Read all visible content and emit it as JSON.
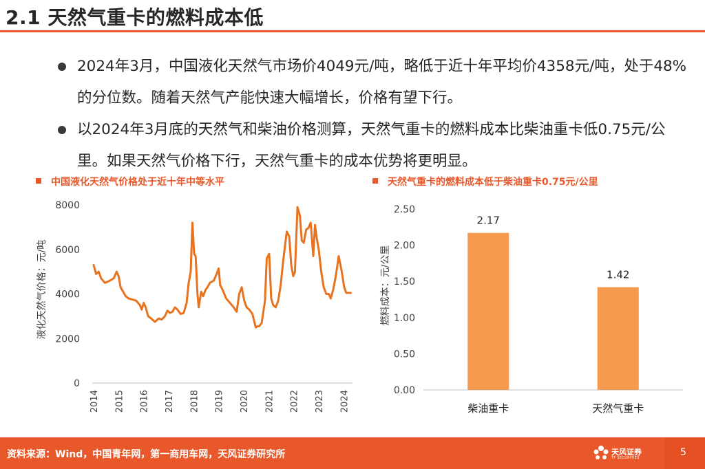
{
  "slide": {
    "title": "2.1 天然气重卡的燃料成本低",
    "page_number": "5",
    "accent_color": "#E8582A"
  },
  "bullets": [
    "2024年3月，中国液化天然气市场价4049元/吨，略低于近十年平均价4358元/吨，处于48%的分位数。随着天然气产能快速大幅增长，价格有望下行。",
    "以2024年3月底的天然气和柴油价格测算，天然气重卡的燃料成本比柴油重卡低0.75元/公里。如果天然气价格下行，天然气重卡的成本优势将更明显。"
  ],
  "footer": {
    "source": "资料来源：Wind，中国青年网，第一商用车网，天风证券研究所",
    "logo_name": "天风证券",
    "logo_sub": "TF SECURITIES"
  },
  "chart_data": [
    {
      "type": "line",
      "title": "中国液化天然气价格处于近十年中等水平",
      "ylabel": "液化天然气价格：元/吨",
      "xlabel": "",
      "ylim": [
        0,
        8000
      ],
      "xlim": [
        2014,
        2024.35
      ],
      "yticks": [
        0,
        2000,
        4000,
        6000,
        8000
      ],
      "xticks": [
        "2014",
        "2015",
        "2016",
        "2017",
        "2018",
        "2019",
        "2020",
        "2021",
        "2022",
        "2023",
        "2024"
      ],
      "grid": false,
      "color": "#E8731F",
      "series": [
        {
          "x": [
            2014.0,
            2014.1,
            2014.2,
            2014.3,
            2014.45,
            2014.55,
            2014.65,
            2014.8,
            2014.92,
            2015.0,
            2015.08,
            2015.18,
            2015.28,
            2015.4,
            2015.55,
            2015.7,
            2015.85,
            2015.92,
            2016.0,
            2016.08,
            2016.18,
            2016.3,
            2016.45,
            2016.6,
            2016.72,
            2016.85,
            2016.95,
            2017.05,
            2017.15,
            2017.25,
            2017.35,
            2017.48,
            2017.6,
            2017.72,
            2017.8,
            2017.88,
            2017.95,
            2018.02,
            2018.08,
            2018.15,
            2018.2,
            2018.3,
            2018.38,
            2018.48,
            2018.55,
            2018.65,
            2018.8,
            2018.92,
            2019.0,
            2019.06,
            2019.15,
            2019.3,
            2019.45,
            2019.6,
            2019.72,
            2019.82,
            2019.92,
            2020.02,
            2020.12,
            2020.22,
            2020.35,
            2020.48,
            2020.55,
            2020.62,
            2020.72,
            2020.85,
            2020.92,
            2021.02,
            2021.1,
            2021.18,
            2021.28,
            2021.38,
            2021.48,
            2021.58,
            2021.72,
            2021.82,
            2021.9,
            2021.98,
            2022.05,
            2022.15,
            2022.25,
            2022.32,
            2022.4,
            2022.5,
            2022.58,
            2022.68,
            2022.78,
            2022.85,
            2022.92,
            2023.0,
            2023.1,
            2023.2,
            2023.3,
            2023.4,
            2023.48,
            2023.58,
            2023.68,
            2023.8,
            2023.92,
            2024.02,
            2024.1,
            2024.2,
            2024.28
          ],
          "y": [
            5300,
            4900,
            5000,
            4700,
            4500,
            4550,
            4600,
            4700,
            5000,
            4800,
            4300,
            4100,
            3900,
            3800,
            3750,
            3700,
            3500,
            3300,
            3600,
            3400,
            3000,
            2900,
            2750,
            2900,
            2850,
            3000,
            3250,
            3150,
            3200,
            3400,
            3300,
            3100,
            3150,
            3600,
            4500,
            5000,
            7200,
            5800,
            5700,
            4000,
            3400,
            4100,
            3900,
            4200,
            4300,
            4500,
            4600,
            4900,
            5150,
            4400,
            4200,
            3800,
            3600,
            3400,
            3200,
            4000,
            4300,
            3700,
            3400,
            3300,
            3100,
            2500,
            2550,
            2550,
            2700,
            3700,
            5600,
            5800,
            3800,
            3500,
            3400,
            3700,
            4400,
            5500,
            6800,
            6600,
            5300,
            4800,
            5000,
            7900,
            7500,
            6400,
            6300,
            6900,
            6950,
            7200,
            5700,
            7100,
            6500,
            6000,
            5000,
            4300,
            4000,
            4000,
            3800,
            4200,
            4800,
            5700,
            5000,
            4300,
            4049,
            4049,
            4049
          ]
        }
      ]
    },
    {
      "type": "bar",
      "title": "天然气重卡的燃料成本低于柴油重卡0.75元/公里",
      "ylabel": "燃料成本：元/公里",
      "xlabel": "",
      "ylim": [
        0,
        2.5
      ],
      "yticks": [
        "0.00",
        "0.50",
        "1.00",
        "1.50",
        "2.00",
        "2.50"
      ],
      "categories": [
        "柴油重卡",
        "天然气重卡"
      ],
      "values": [
        2.17,
        1.42
      ],
      "data_labels": [
        "2.17",
        "1.42"
      ],
      "grid": false,
      "color": "#F59A4E"
    }
  ]
}
